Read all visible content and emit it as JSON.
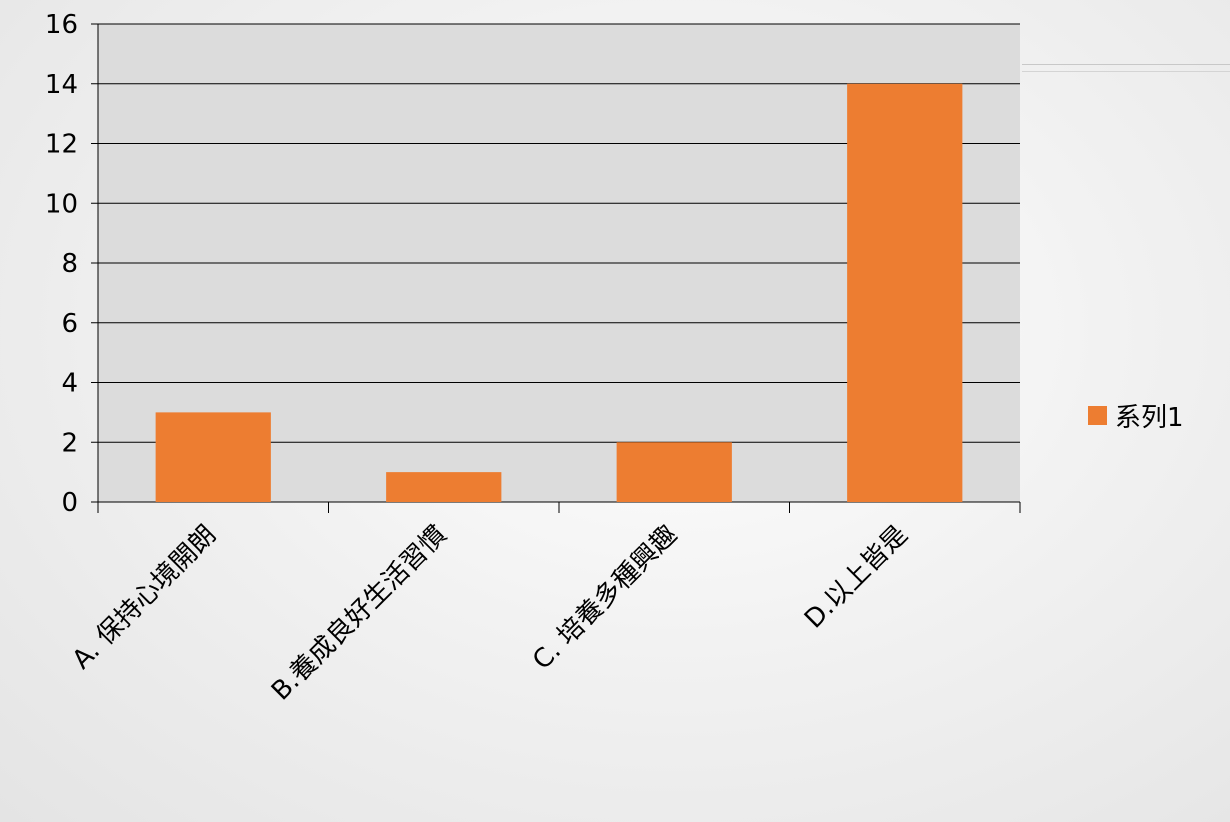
{
  "chart_data": {
    "type": "bar",
    "title": "",
    "xlabel": "",
    "ylabel": "",
    "categories": [
      "A. 保持心境開朗",
      "B.養成良好生活習慣",
      "C. 培養多種興趣",
      "D.以上皆是"
    ],
    "series": [
      {
        "name": "系列1",
        "values": [
          3,
          1,
          2,
          14
        ],
        "color": "#ed7d31"
      }
    ],
    "ylim": [
      0,
      16
    ],
    "yticks": [
      0,
      2,
      4,
      6,
      8,
      10,
      12,
      14,
      16
    ],
    "grid": true,
    "legend": "right",
    "plot_background": "#dcdcdc"
  }
}
